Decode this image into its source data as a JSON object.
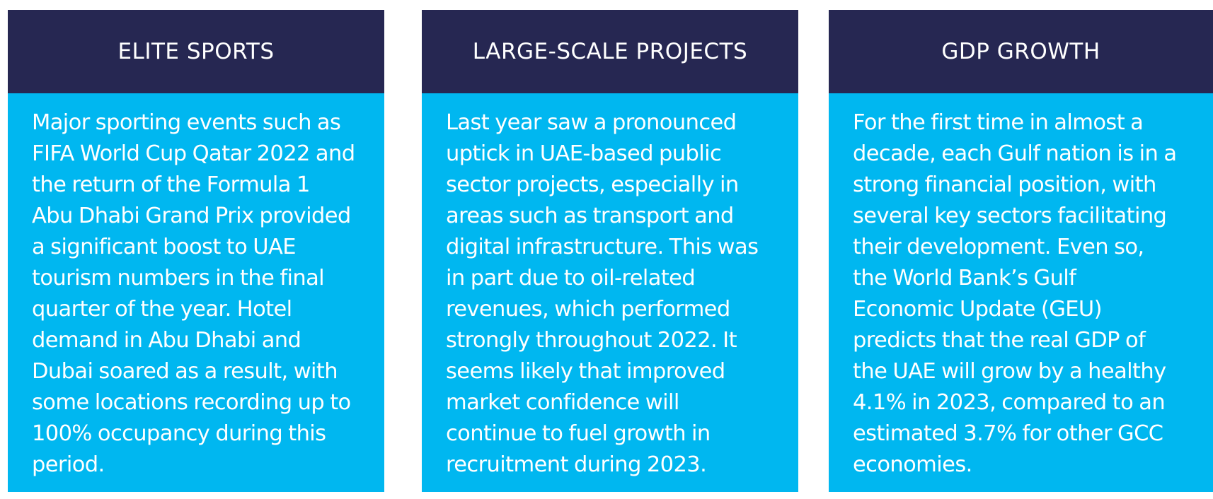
{
  "colors": {
    "header_bg": "#262752",
    "body_bg": "#00b7f0",
    "text": "#ffffff"
  },
  "cards": [
    {
      "title": "ELITE SPORTS",
      "lines": [
        "Major sporting events such as",
        "FIFA World Cup Qatar 2022 and",
        "the return of the Formula 1",
        "Abu Dhabi Grand Prix provided",
        "a significant boost to UAE",
        "tourism numbers in the final",
        "quarter of the year. Hotel",
        "demand in Abu Dhabi and",
        "Dubai soared as a result, with",
        "some locations recording up to",
        "100% occupancy during this",
        "period."
      ]
    },
    {
      "title": "LARGE-SCALE PROJECTS",
      "lines": [
        "Last year saw a pronounced",
        "uptick in UAE-based public",
        "sector projects, especially in",
        "areas such as transport and",
        "digital infrastructure. This was",
        "in part due to oil-related",
        "revenues, which performed",
        "strongly throughout 2022. It",
        "seems likely that improved",
        "market confidence will",
        "continue to fuel growth in",
        "recruitment during 2023."
      ]
    },
    {
      "title": "GDP GROWTH",
      "lines": [
        "For the first time in almost a",
        "decade, each Gulf nation is in a",
        "strong financial position, with",
        "several key sectors facilitating",
        "their development. Even so,",
        "the World Bank’s Gulf",
        "Economic Update (GEU)",
        "predicts that the real GDP of",
        "the UAE will grow by a healthy",
        "4.1% in 2023, compared to an",
        "estimated 3.7% for other GCC",
        "economies."
      ]
    }
  ]
}
